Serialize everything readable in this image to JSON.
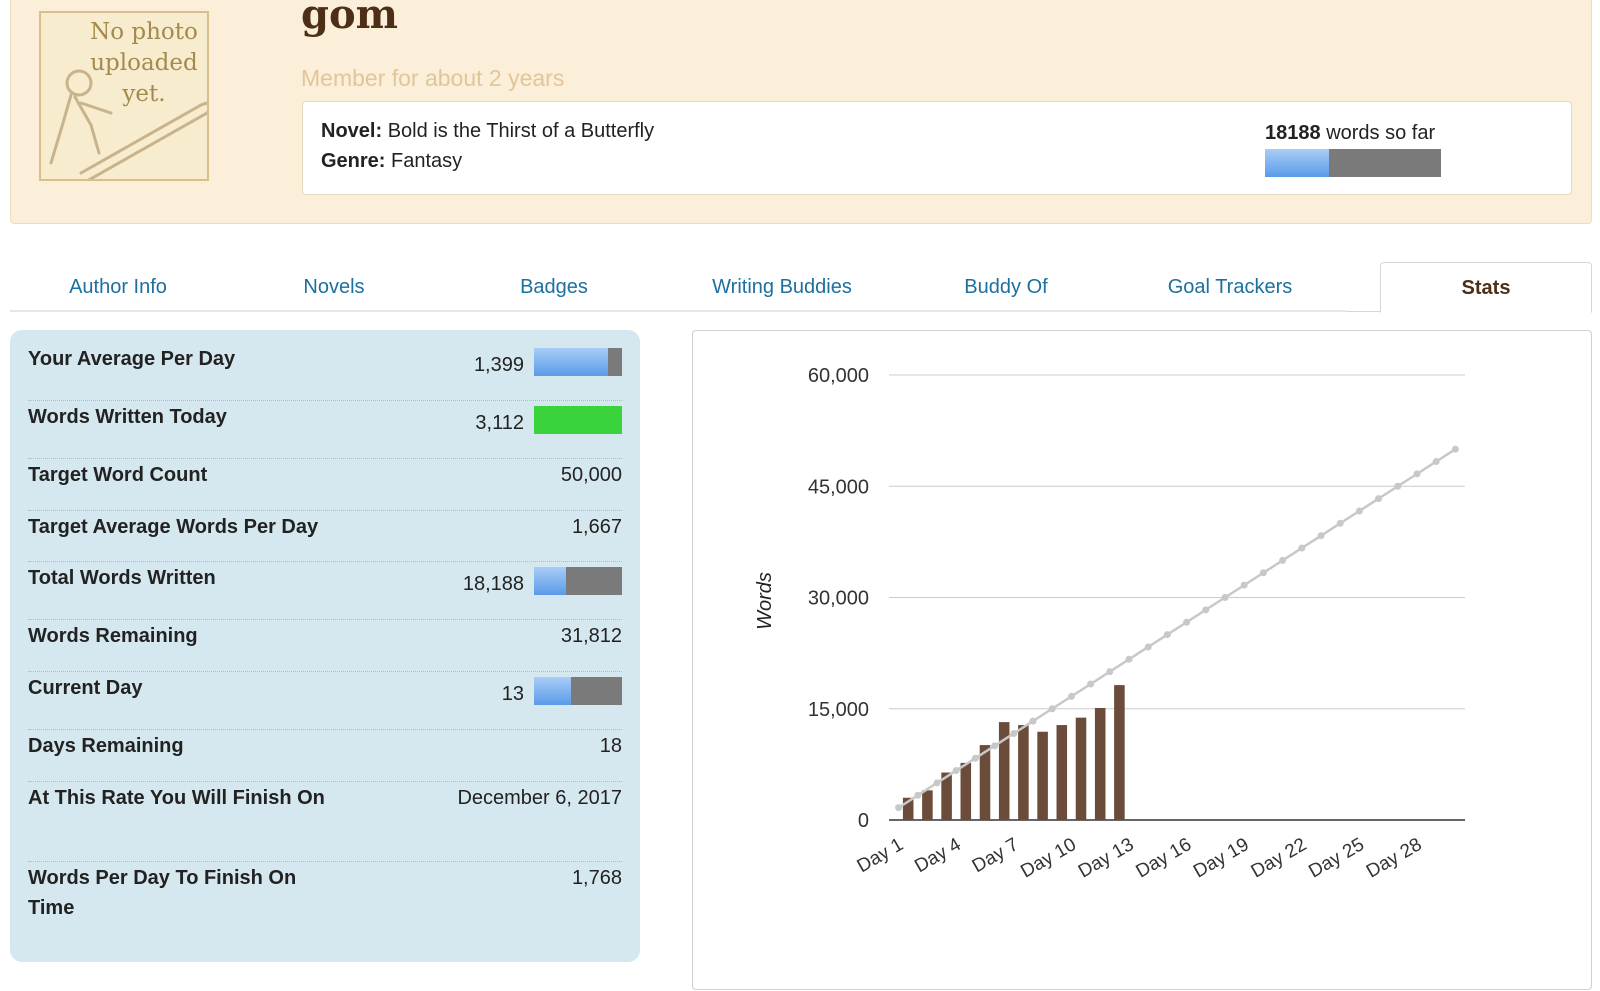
{
  "profile": {
    "photo_placeholder_lines": [
      "No photo",
      "uploaded",
      "yet."
    ],
    "username": "gom",
    "member_since": "Member for about 2 years",
    "novel_label": "Novel:",
    "novel_title": "Bold is the Thirst of a Butterfly",
    "genre_label": "Genre:",
    "genre": "Fantasy",
    "word_count": "18188",
    "word_count_suffix": "words so far",
    "progress_fraction": 0.3638
  },
  "tabs": [
    {
      "label": "Author Info",
      "active": false
    },
    {
      "label": "Novels",
      "active": false
    },
    {
      "label": "Badges",
      "active": false
    },
    {
      "label": "Writing Buddies",
      "active": false
    },
    {
      "label": "Buddy Of",
      "active": false
    },
    {
      "label": "Goal Trackers",
      "active": false
    },
    {
      "label": "Stats",
      "active": true
    }
  ],
  "stats": [
    {
      "label": "Your Average Per Day",
      "value": "1,399",
      "bar": {
        "type": "progress",
        "fraction": 0.84
      }
    },
    {
      "label": "Words Written Today",
      "value": "3,112",
      "bar": {
        "type": "green",
        "fraction": 1.0
      }
    },
    {
      "label": "Target Word Count",
      "value": "50,000"
    },
    {
      "label": "Target Average Words Per Day",
      "value": "1,667"
    },
    {
      "label": "Total Words Written",
      "value": "18,188",
      "bar": {
        "type": "progress",
        "fraction": 0.3638
      }
    },
    {
      "label": "Words Remaining",
      "value": "31,812"
    },
    {
      "label": "Current Day",
      "value": "13",
      "bar": {
        "type": "progress",
        "fraction": 0.42
      }
    },
    {
      "label": "Days Remaining",
      "value": "18"
    },
    {
      "label": "At This Rate You Will Finish On",
      "value": "December 6, 2017"
    },
    {
      "label": "Words Per Day To Finish On Time",
      "value": "1,768"
    }
  ],
  "colors": {
    "header_bg": "#fcefd9",
    "stats_bg": "#d6e8ef",
    "tab_link": "#1d6f9f",
    "bar_color": "#6b4c3b",
    "target_line": "#c8c8c8",
    "progress_blue": "#5a9ae8",
    "progress_grey": "#7a7a7a",
    "today_green": "#3bd33b"
  },
  "chart_data": {
    "type": "bar",
    "ylabel": "Words",
    "ylim": [
      0,
      60000
    ],
    "yticks": [
      0,
      15000,
      30000,
      45000,
      60000
    ],
    "ytick_labels": [
      "0",
      "15,000",
      "30,000",
      "45,000",
      "60,000"
    ],
    "categories": [
      "Day 1",
      "Day 2",
      "Day 3",
      "Day 4",
      "Day 5",
      "Day 6",
      "Day 7",
      "Day 8",
      "Day 9",
      "Day 10",
      "Day 11",
      "Day 12",
      "Day 13",
      "Day 14",
      "Day 15",
      "Day 16",
      "Day 17",
      "Day 18",
      "Day 19",
      "Day 20",
      "Day 21",
      "Day 22",
      "Day 23",
      "Day 24",
      "Day 25",
      "Day 26",
      "Day 27",
      "Day 28",
      "Day 29",
      "Day 30"
    ],
    "xtick_labels": [
      "Day 1",
      "Day 4",
      "Day 7",
      "Day 10",
      "Day 13",
      "Day 16",
      "Day 19",
      "Day 22",
      "Day 25",
      "Day 28"
    ],
    "series": [
      {
        "type": "bar",
        "values": [
          3000,
          4000,
          6400,
          7700,
          10100,
          13200,
          12800,
          11900,
          12800,
          13800,
          15100,
          18188,
          null,
          null,
          null,
          null,
          null,
          null,
          null,
          null,
          null,
          null,
          null,
          null,
          null,
          null,
          null,
          null,
          null,
          null
        ]
      },
      {
        "type": "line",
        "values": [
          1667,
          3333,
          5000,
          6667,
          8333,
          10000,
          11667,
          13333,
          15000,
          16667,
          18333,
          20000,
          21667,
          23333,
          25000,
          26667,
          28333,
          30000,
          31667,
          33333,
          35000,
          36667,
          38333,
          40000,
          41667,
          43333,
          45000,
          46667,
          48333,
          50000
        ]
      }
    ]
  }
}
